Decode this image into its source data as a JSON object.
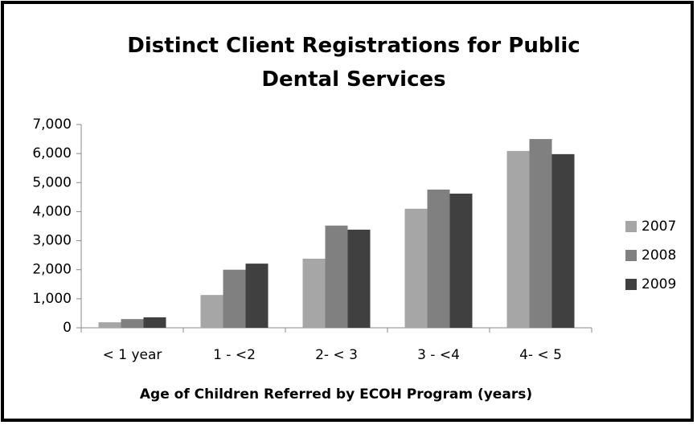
{
  "chart_data": {
    "type": "bar",
    "title": "Distinct Client Registrations for Public Dental Services",
    "x_label": "Age of Children Referred by ECOH Program (years)",
    "categories": [
      "< 1 year",
      "1 - <2",
      "2- < 3",
      "3 - <4",
      "4- < 5"
    ],
    "series": [
      {
        "name": "2007",
        "color": "#a6a6a6",
        "values": [
          190,
          1130,
          2380,
          4100,
          6090
        ]
      },
      {
        "name": "2008",
        "color": "#808080",
        "values": [
          300,
          2000,
          3520,
          4760,
          6500
        ]
      },
      {
        "name": "2009",
        "color": "#404040",
        "values": [
          360,
          2210,
          3380,
          4620,
          5980
        ]
      }
    ],
    "ylim": [
      0,
      7000
    ],
    "yticks": [
      0,
      {
        "value": 1000,
        "label": "1,000"
      },
      {
        "value": 2000,
        "label": "2,000"
      },
      {
        "value": 3000,
        "label": "3,000"
      },
      {
        "value": 4000,
        "label": "4,000"
      },
      {
        "value": 5000,
        "label": "5,000"
      },
      {
        "value": 6000,
        "label": "6,000"
      },
      {
        "value": 7000,
        "label": "7,000"
      }
    ],
    "legend": "right",
    "grid": false
  }
}
